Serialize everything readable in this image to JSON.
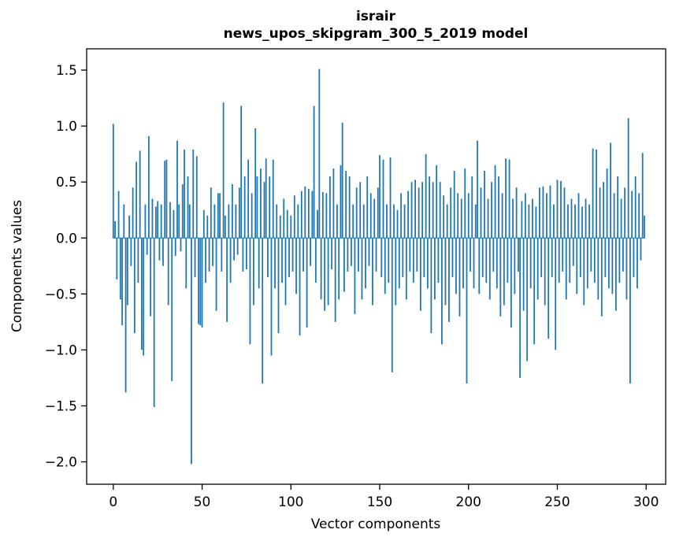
{
  "chart_data": {
    "type": "bar",
    "title": "israir",
    "subtitle": "news_upos_skipgram_300_5_2019 model",
    "xlabel": "Vector components",
    "ylabel": "Components values",
    "bar_color": "#1f77b4",
    "background_color": "#ffffff",
    "spine_color": "#000000",
    "grid": false,
    "legend": "none",
    "x_start": 0,
    "n_components": 300,
    "xlim": [
      -15,
      311
    ],
    "ylim": [
      -2.2,
      1.69
    ],
    "xticks": {
      "positions": [
        0,
        50,
        100,
        150,
        200,
        250,
        300
      ],
      "labels": [
        "0",
        "50",
        "100",
        "150",
        "200",
        "250",
        "300"
      ]
    },
    "yticks": {
      "positions": [
        1.5,
        1.0,
        0.5,
        0.0,
        -0.5,
        -1.0,
        -1.5,
        -2.0
      ],
      "labels": [
        "1.5",
        "1.0",
        "0.5",
        "0.0",
        "−0.5",
        "−1.0",
        "−1.5",
        "−2.0"
      ]
    },
    "values": [
      1.02,
      0.15,
      -0.37,
      0.42,
      -0.55,
      -0.78,
      0.3,
      -1.38,
      -0.6,
      0.2,
      -0.25,
      0.45,
      -0.85,
      0.68,
      -0.4,
      0.78,
      -1.0,
      -1.05,
      0.3,
      -0.15,
      0.91,
      -0.7,
      0.35,
      -1.51,
      0.28,
      0.33,
      -0.2,
      0.3,
      -0.25,
      0.69,
      0.7,
      -0.6,
      0.32,
      -1.28,
      0.25,
      -0.16,
      0.87,
      0.3,
      -0.12,
      0.48,
      0.79,
      -0.45,
      0.55,
      0.3,
      -2.02,
      0.79,
      -0.35,
      0.73,
      -0.77,
      -0.78,
      -0.8,
      0.25,
      -0.4,
      0.2,
      -0.3,
      0.45,
      -0.25,
      0.3,
      -0.65,
      0.4,
      0.4,
      -0.3,
      1.21,
      0.2,
      -0.75,
      0.3,
      -0.4,
      0.48,
      -0.2,
      0.3,
      -0.15,
      0.45,
      1.18,
      -0.3,
      0.55,
      -0.28,
      0.7,
      -0.95,
      0.4,
      -0.6,
      0.98,
      0.55,
      -0.45,
      0.62,
      -1.3,
      0.5,
      0.71,
      -0.35,
      0.55,
      -1.05,
      0.7,
      -0.45,
      0.3,
      -0.85,
      0.2,
      -0.4,
      0.35,
      -0.6,
      0.25,
      -0.35,
      0.2,
      -0.3,
      0.38,
      -0.5,
      0.3,
      -0.87,
      0.42,
      -0.3,
      0.46,
      -0.8,
      0.44,
      -0.25,
      0.42,
      1.18,
      -0.4,
      0.25,
      1.51,
      -0.55,
      0.41,
      -0.65,
      0.4,
      -0.6,
      0.55,
      -0.28,
      0.62,
      -0.75,
      0.3,
      -0.55,
      0.65,
      1.03,
      -0.48,
      0.6,
      -0.3,
      0.55,
      -0.25,
      0.3,
      -0.68,
      0.45,
      -0.3,
      0.5,
      -0.55,
      0.3,
      -0.45,
      0.55,
      -0.25,
      0.4,
      -0.6,
      0.35,
      -0.3,
      0.45,
      0.74,
      -0.35,
      0.7,
      -0.5,
      0.3,
      -0.4,
      0.72,
      -1.2,
      0.3,
      -0.6,
      0.25,
      -0.45,
      0.4,
      -0.35,
      0.3,
      -0.55,
      0.42,
      -0.3,
      0.5,
      -0.4,
      0.52,
      -0.3,
      0.45,
      -0.65,
      0.5,
      -0.35,
      0.75,
      -0.45,
      0.55,
      -0.85,
      0.5,
      -0.55,
      0.65,
      -0.4,
      0.5,
      -0.95,
      0.38,
      -0.6,
      0.3,
      -0.75,
      0.45,
      -0.35,
      0.6,
      -0.5,
      0.4,
      -0.7,
      0.35,
      -0.45,
      0.62,
      -1.3,
      0.4,
      -0.3,
      0.55,
      -0.45,
      0.3,
      0.87,
      -0.5,
      0.45,
      -0.35,
      0.6,
      -0.4,
      0.35,
      -0.55,
      0.5,
      -0.3,
      0.65,
      -0.45,
      0.55,
      -0.7,
      0.4,
      -0.6,
      0.71,
      -0.4,
      0.7,
      -0.8,
      0.35,
      -0.5,
      0.45,
      -0.3,
      -1.25,
      0.33,
      -0.65,
      0.4,
      -1.1,
      0.3,
      -0.45,
      0.35,
      -0.95,
      0.28,
      -0.55,
      0.45,
      -0.35,
      0.46,
      -0.6,
      0.4,
      -0.9,
      0.47,
      -0.35,
      0.3,
      -1.0,
      0.52,
      -0.4,
      0.51,
      -0.3,
      0.45,
      -0.55,
      0.3,
      -0.4,
      0.35,
      -0.25,
      0.3,
      -0.5,
      0.4,
      -0.35,
      0.28,
      -0.6,
      0.35,
      -0.45,
      0.3,
      -0.3,
      0.8,
      -0.4,
      0.79,
      -0.55,
      0.45,
      -0.7,
      0.5,
      -0.35,
      0.62,
      -0.45,
      0.85,
      -0.5,
      0.4,
      -0.65,
      0.55,
      -0.4,
      0.35,
      -0.3,
      0.45,
      -0.55,
      1.07,
      -1.3,
      0.42,
      -0.35,
      0.55,
      -0.45,
      0.4,
      -0.2,
      0.76,
      0.2
    ]
  }
}
